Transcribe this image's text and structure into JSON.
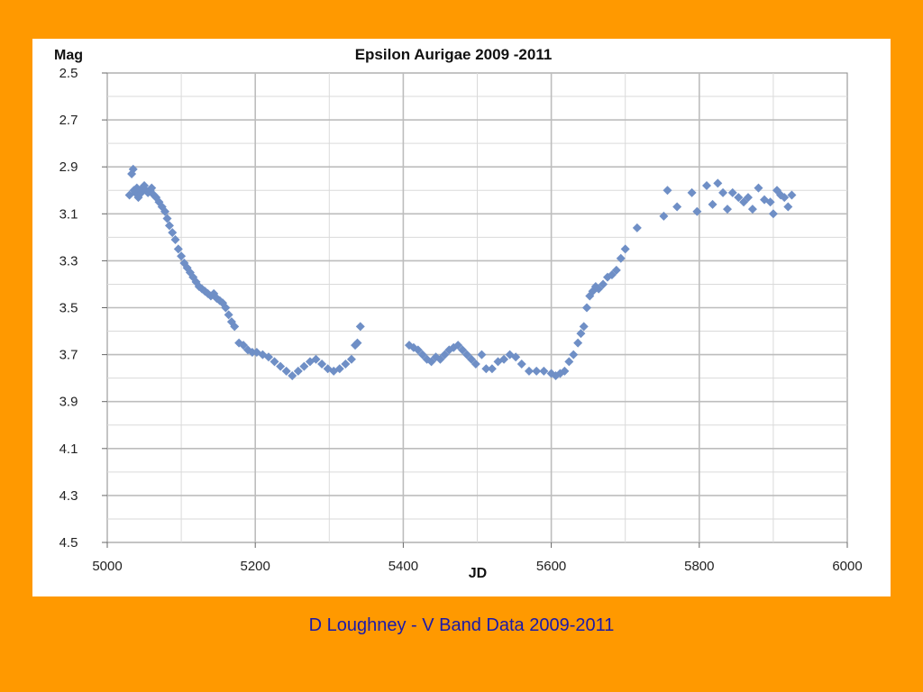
{
  "chart_data": {
    "type": "scatter",
    "title": "Epsilon Aurigae 2009 -2011",
    "xlabel": "JD",
    "ylabel": "Mag",
    "xlim": [
      5000,
      6000
    ],
    "ylim": [
      2.5,
      4.5
    ],
    "y_inverted": true,
    "x_ticks": [
      "5000",
      "5200",
      "5400",
      "5600",
      "5800",
      "6000"
    ],
    "y_ticks": [
      "2.5",
      "2.7",
      "2.9",
      "3.1",
      "3.3",
      "3.5",
      "3.7",
      "3.9",
      "4.1",
      "4.3",
      "4.5"
    ],
    "grid": true,
    "marker": "diamond",
    "series": [
      {
        "color": "#6F8FC6",
        "x": [
          5030,
          5033,
          5035,
          5036,
          5038,
          5040,
          5042,
          5044,
          5046,
          5048,
          5050,
          5052,
          5055,
          5058,
          5060,
          5063,
          5066,
          5070,
          5074,
          5078,
          5081,
          5084,
          5088,
          5092,
          5096,
          5100,
          5104,
          5108,
          5112,
          5116,
          5120,
          5124,
          5128,
          5132,
          5136,
          5140,
          5144,
          5148,
          5152,
          5156,
          5160,
          5164,
          5168,
          5172,
          5178,
          5184,
          5190,
          5196,
          5202,
          5210,
          5218,
          5226,
          5234,
          5242,
          5250,
          5258,
          5266,
          5274,
          5282,
          5290,
          5298,
          5306,
          5314,
          5322,
          5330,
          5335,
          5338,
          5342,
          5408,
          5414,
          5420,
          5426,
          5432,
          5438,
          5444,
          5450,
          5456,
          5462,
          5468,
          5474,
          5480,
          5486,
          5492,
          5498,
          5506,
          5512,
          5520,
          5528,
          5536,
          5544,
          5552,
          5560,
          5570,
          5580,
          5590,
          5600,
          5606,
          5612,
          5618,
          5624,
          5630,
          5636,
          5640,
          5644,
          5648,
          5652,
          5656,
          5660,
          5664,
          5670,
          5676,
          5682,
          5688,
          5694,
          5700,
          5716,
          5752,
          5757,
          5770,
          5790,
          5797,
          5810,
          5818,
          5825,
          5832,
          5838,
          5845,
          5853,
          5860,
          5866,
          5872,
          5880,
          5888,
          5896,
          5900,
          5905,
          5910,
          5915,
          5920,
          5925
        ],
        "y": [
          3.02,
          2.93,
          2.91,
          3.0,
          3.01,
          2.99,
          3.03,
          3.0,
          3.01,
          2.99,
          2.98,
          3.0,
          3.01,
          3.0,
          2.99,
          3.02,
          3.03,
          3.05,
          3.07,
          3.09,
          3.12,
          3.15,
          3.18,
          3.21,
          3.25,
          3.28,
          3.31,
          3.33,
          3.35,
          3.37,
          3.39,
          3.41,
          3.42,
          3.43,
          3.44,
          3.45,
          3.44,
          3.46,
          3.47,
          3.48,
          3.5,
          3.53,
          3.56,
          3.58,
          3.65,
          3.66,
          3.68,
          3.69,
          3.69,
          3.7,
          3.71,
          3.73,
          3.75,
          3.77,
          3.79,
          3.77,
          3.75,
          3.73,
          3.72,
          3.74,
          3.76,
          3.77,
          3.76,
          3.74,
          3.72,
          3.66,
          3.65,
          3.58,
          3.66,
          3.67,
          3.68,
          3.7,
          3.72,
          3.73,
          3.71,
          3.72,
          3.7,
          3.68,
          3.67,
          3.66,
          3.68,
          3.7,
          3.72,
          3.74,
          3.7,
          3.76,
          3.76,
          3.73,
          3.72,
          3.7,
          3.71,
          3.74,
          3.77,
          3.77,
          3.77,
          3.78,
          3.79,
          3.78,
          3.77,
          3.73,
          3.7,
          3.65,
          3.61,
          3.58,
          3.5,
          3.45,
          3.43,
          3.41,
          3.42,
          3.4,
          3.37,
          3.36,
          3.34,
          3.29,
          3.25,
          3.16,
          3.11,
          3.0,
          3.07,
          3.01,
          3.09,
          2.98,
          3.06,
          2.97,
          3.01,
          3.08,
          3.01,
          3.03,
          3.05,
          3.03,
          3.08,
          2.99,
          3.04,
          3.05,
          3.1,
          3.0,
          3.02,
          3.03,
          3.07,
          3.02
        ]
      }
    ]
  },
  "footer": {
    "caption": "D Loughney - V Band Data 2009-2011"
  },
  "colors": {
    "background": "#FF9900",
    "panel": "#FFFFFF",
    "grid": "#BDBDBD",
    "marker": "#6F8FC6",
    "caption": "#1A1AAA"
  }
}
